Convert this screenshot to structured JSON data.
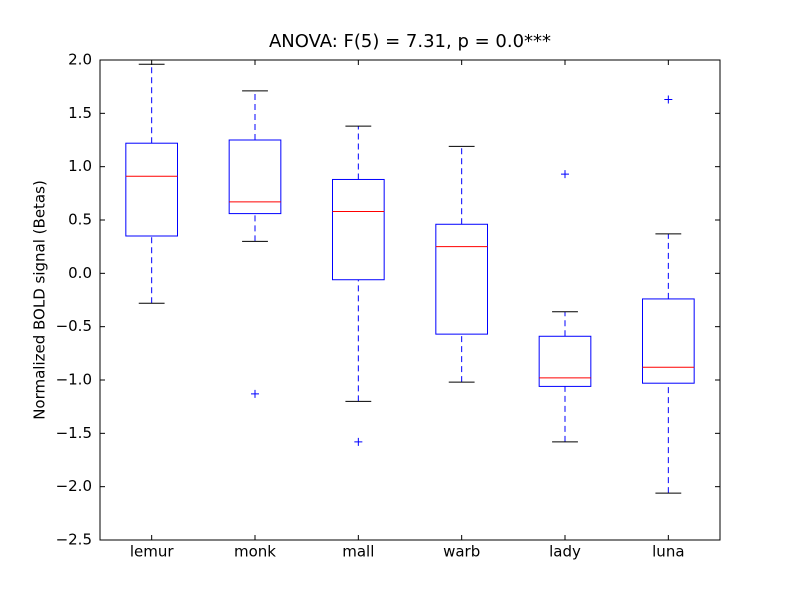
{
  "chart_data": {
    "type": "box",
    "title": "ANOVA: F(5) = 7.31, p = 0.0***",
    "y_label": "Normalized BOLD signal (Betas)",
    "categories": [
      "lemur",
      "monk",
      "mall",
      "warb",
      "lady",
      "luna"
    ],
    "boxes": [
      {
        "whislo": -0.28,
        "q1": 0.35,
        "med": 0.91,
        "q3": 1.22,
        "whishi": 1.96,
        "fliers": []
      },
      {
        "whislo": 0.3,
        "q1": 0.56,
        "med": 0.67,
        "q3": 1.25,
        "whishi": 1.71,
        "fliers": [
          -1.13
        ]
      },
      {
        "whislo": -1.2,
        "q1": -0.06,
        "med": 0.58,
        "q3": 0.88,
        "whishi": 1.38,
        "fliers": [
          -1.58
        ]
      },
      {
        "whislo": -1.02,
        "q1": -0.57,
        "med": 0.25,
        "q3": 0.46,
        "whishi": 1.19,
        "fliers": []
      },
      {
        "whislo": -1.58,
        "q1": -1.06,
        "med": -0.98,
        "q3": -0.59,
        "whishi": -0.36,
        "fliers": [
          0.93
        ]
      },
      {
        "whislo": -2.06,
        "q1": -1.03,
        "med": -0.88,
        "q3": -0.24,
        "whishi": 0.37,
        "fliers": [
          1.63
        ]
      }
    ],
    "ylim": [
      -2.5,
      2.0
    ],
    "yticks": [
      {
        "value": -2.5,
        "label": "−2.5"
      },
      {
        "value": -2.0,
        "label": "−2.0"
      },
      {
        "value": -1.5,
        "label": "−1.5"
      },
      {
        "value": -1.0,
        "label": "−1.0"
      },
      {
        "value": -0.5,
        "label": "−0.5"
      },
      {
        "value": 0.0,
        "label": "0.0"
      },
      0.5,
      {
        "value": 1.0,
        "label": "1.0"
      },
      1.5,
      {
        "value": 2.0,
        "label": "2.0"
      }
    ],
    "box_color": "#0000ff",
    "median_color": "#ff0000",
    "cap_color": "#000000",
    "grid": false
  }
}
